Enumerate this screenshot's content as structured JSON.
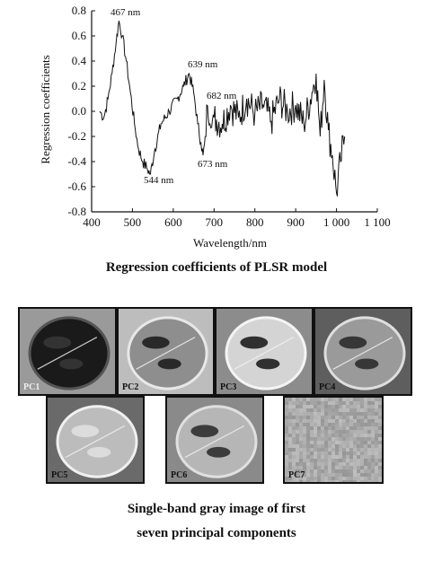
{
  "figure": {
    "caption_chart": "Regression coefficients of PLSR model",
    "caption_images_line1": "Single-band gray image of first",
    "caption_images_line2": "seven principal components"
  },
  "chart_data": {
    "type": "line",
    "xlabel": "Wavelength/nm",
    "ylabel": "Regression coefficients",
    "xlim": [
      400,
      1100
    ],
    "ylim": [
      -0.8,
      0.8
    ],
    "x_ticks": [
      400,
      500,
      600,
      700,
      800,
      900,
      1000,
      1100
    ],
    "x_tick_labels": [
      "400",
      "500",
      "600",
      "700",
      "800",
      "900",
      "1 000",
      "1 100"
    ],
    "y_ticks": [
      -0.8,
      -0.6,
      -0.4,
      -0.2,
      0.0,
      0.2,
      0.4,
      0.6,
      0.8
    ],
    "y_tick_labels": [
      "-0.8",
      "-0.6",
      "-0.4",
      "-0.2",
      "0.0",
      "0.2",
      "0.4",
      "0.6",
      "0.8"
    ],
    "grid": false,
    "series": [
      {
        "x": [
          420,
          430,
          440,
          450,
          460,
          467,
          475,
          485,
          495,
          505,
          515,
          525,
          535,
          544,
          555,
          570,
          590,
          610,
          625,
          639,
          650,
          660,
          668,
          673,
          680,
          682,
          690,
          700,
          720,
          740,
          760,
          780,
          800,
          820,
          840,
          860,
          880,
          900,
          920,
          940,
          950,
          960,
          970,
          980,
          990,
          1000,
          1010,
          1020
        ],
        "y": [
          0.0,
          -0.05,
          0.1,
          0.3,
          0.55,
          0.72,
          0.6,
          0.4,
          0.15,
          -0.1,
          -0.3,
          -0.4,
          -0.45,
          -0.5,
          -0.3,
          -0.1,
          0.0,
          0.1,
          0.2,
          0.3,
          0.15,
          -0.1,
          -0.25,
          -0.35,
          -0.2,
          0.05,
          -0.1,
          -0.05,
          -0.1,
          0.05,
          -0.05,
          0.1,
          -0.02,
          0.05,
          -0.08,
          0.1,
          0.0,
          0.05,
          -0.1,
          0.15,
          0.3,
          -0.2,
          0.25,
          -0.15,
          -0.35,
          -0.65,
          -0.4,
          -0.2
        ]
      }
    ],
    "annotations": [
      {
        "text": "467 nm",
        "x": 467,
        "y": 0.72
      },
      {
        "text": "544 nm",
        "x": 544,
        "y": -0.5
      },
      {
        "text": "639 nm",
        "x": 639,
        "y": 0.3
      },
      {
        "text": "682 nm",
        "x": 682,
        "y": 0.05
      },
      {
        "text": "673 nm",
        "x": 673,
        "y": -0.35
      }
    ]
  },
  "images": [
    {
      "label": "PC1"
    },
    {
      "label": "PC2"
    },
    {
      "label": "PC3"
    },
    {
      "label": "PC4"
    },
    {
      "label": "PC5"
    },
    {
      "label": "PC6"
    },
    {
      "label": "PC7"
    }
  ]
}
